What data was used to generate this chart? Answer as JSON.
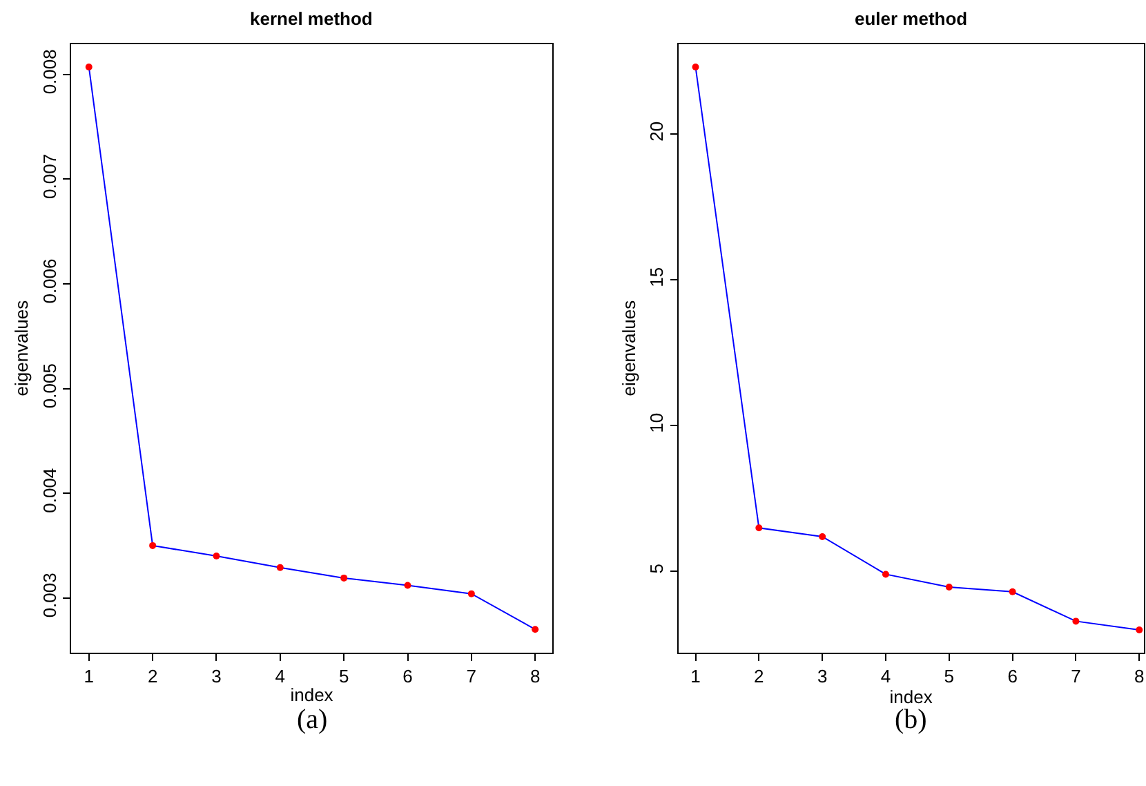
{
  "chart_data": [
    {
      "type": "line",
      "title": "kernel method",
      "xlabel": "index",
      "ylabel": "eigenvalues",
      "x": [
        1,
        2,
        3,
        4,
        5,
        6,
        7,
        8
      ],
      "series": [
        {
          "color": "#0000ff",
          "values": [
            0.00807,
            0.0035,
            0.0034,
            0.00329,
            0.00319,
            0.00312,
            0.00304,
            0.0027
          ]
        }
      ],
      "xlim": [
        0.72,
        8.27
      ],
      "xticks": [
        1,
        2,
        3,
        4,
        5,
        6,
        7,
        8
      ],
      "ylim": [
        0.00248,
        0.00829
      ],
      "yticks": [
        {
          "value": 0.003,
          "label": "0.003"
        },
        {
          "value": 0.004,
          "label": "0.004"
        },
        {
          "value": 0.005,
          "label": "0.005"
        },
        {
          "value": 0.006,
          "label": "0.006"
        },
        {
          "value": 0.007,
          "label": "0.007"
        },
        {
          "value": 0.008,
          "label": "0.008"
        }
      ],
      "marker": "circle",
      "annotations": [
        "(a)"
      ]
    },
    {
      "type": "line",
      "title": "euler method",
      "xlabel": "index",
      "ylabel": "eigenvalues",
      "x": [
        1,
        2,
        3,
        4,
        5,
        6,
        7,
        8
      ],
      "series": [
        {
          "color": "#0000ff",
          "values": [
            22.3,
            6.49,
            6.19,
            4.9,
            4.46,
            4.3,
            3.29,
            2.99
          ]
        }
      ],
      "xlim": [
        0.73,
        8.07
      ],
      "xticks": [
        1,
        2,
        3,
        4,
        5,
        6,
        7,
        8
      ],
      "ylim": [
        2.22,
        23.09
      ],
      "yticks": [
        5,
        10,
        15,
        20
      ],
      "marker": "circle",
      "annotations": [
        "(b)"
      ]
    }
  ]
}
